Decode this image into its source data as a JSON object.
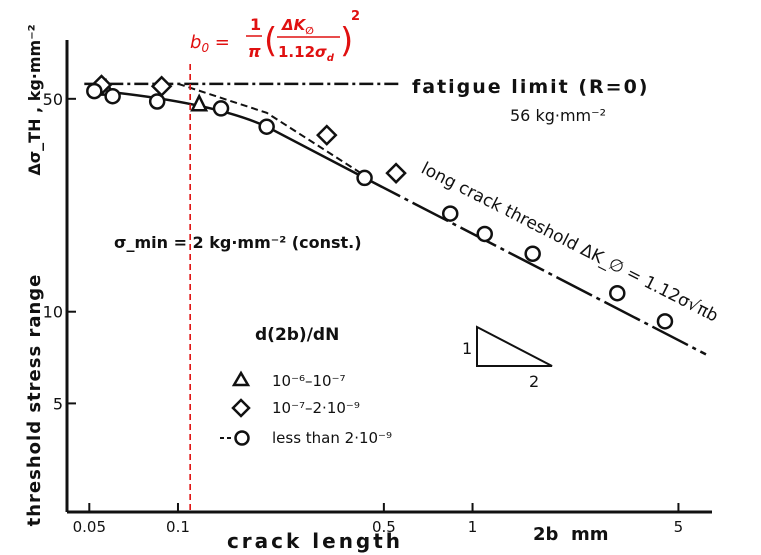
{
  "chart_data": {
    "type": "scatter",
    "title": "",
    "xlabel": "crack length",
    "xunit": "2b  mm",
    "ylabel": "threshold stress range",
    "yunit": "Δσ_TH , kg·mm⁻²",
    "xscale": "log",
    "yscale": "log",
    "xlim": [
      0.042,
      6.5
    ],
    "ylim": [
      2.2,
      78
    ],
    "x_ticks": [
      {
        "value": 0.05,
        "label": "0.05"
      },
      {
        "value": 0.1,
        "label": "0.1"
      },
      {
        "value": 0.5,
        "label": "0.5"
      },
      {
        "value": 1,
        "label": "1"
      },
      {
        "value": 5,
        "label": "5"
      }
    ],
    "y_ticks": [
      {
        "value": 5,
        "label": "5"
      },
      {
        "value": 10,
        "label": "10"
      },
      {
        "value": 50,
        "label": "50"
      }
    ],
    "grid": false,
    "legend_title": "d(2b)/dN",
    "legend_position": "bottom-center",
    "series": [
      {
        "name": "10⁻⁶–10⁻⁷",
        "marker": "triangle",
        "points": [
          {
            "x": 0.057,
            "y": 54
          },
          {
            "x": 0.118,
            "y": 48
          }
        ]
      },
      {
        "name": "10⁻⁷–2·10⁻⁹",
        "marker": "diamond",
        "points": [
          {
            "x": 0.055,
            "y": 55.5
          },
          {
            "x": 0.088,
            "y": 55
          },
          {
            "x": 0.32,
            "y": 38
          },
          {
            "x": 0.55,
            "y": 28.5
          }
        ]
      },
      {
        "name": "less than 2·10⁻⁹",
        "marker": "circle",
        "points": [
          {
            "x": 0.052,
            "y": 53
          },
          {
            "x": 0.06,
            "y": 51
          },
          {
            "x": 0.085,
            "y": 49
          },
          {
            "x": 0.14,
            "y": 46.5
          },
          {
            "x": 0.2,
            "y": 40.5
          },
          {
            "x": 0.43,
            "y": 27.5
          },
          {
            "x": 0.84,
            "y": 21
          },
          {
            "x": 1.1,
            "y": 18
          },
          {
            "x": 1.6,
            "y": 15.5
          },
          {
            "x": 3.1,
            "y": 11.5
          },
          {
            "x": 4.5,
            "y": 9.3
          }
        ]
      }
    ],
    "reference_lines": {
      "fatigue_limit": {
        "y": 56,
        "label": "fatigue limit (R=0)",
        "value_label": "56 kg·mm⁻²"
      },
      "long_crack_threshold": {
        "label": "long crack threshold ΔK_∅ = 1.12σ√πb",
        "x_from": 0.43,
        "x_to": 6.2,
        "y_at_x_from": 27.5,
        "slope": -0.5
      },
      "curve": {
        "label": "",
        "points": [
          {
            "x": 0.05,
            "y": 53.5
          },
          {
            "x": 0.1,
            "y": 49
          },
          {
            "x": 0.2,
            "y": 40.5
          },
          {
            "x": 0.43,
            "y": 27.5
          }
        ]
      },
      "dashed_transition": {
        "points": [
          {
            "x": 0.1,
            "y": 56
          },
          {
            "x": 0.2,
            "y": 45
          },
          {
            "x": 0.43,
            "y": 28
          }
        ]
      },
      "b0_line": {
        "x": 0.11,
        "formula": "b₀ = (1/π)(ΔK_∅ / 1.12σ_d)²",
        "color": "#e01010"
      }
    },
    "annotations": {
      "sigma_min": "σ_min = 2 kg·mm⁻² (const.)",
      "slope_triangle": {
        "rise": "1",
        "run": "2"
      }
    }
  }
}
